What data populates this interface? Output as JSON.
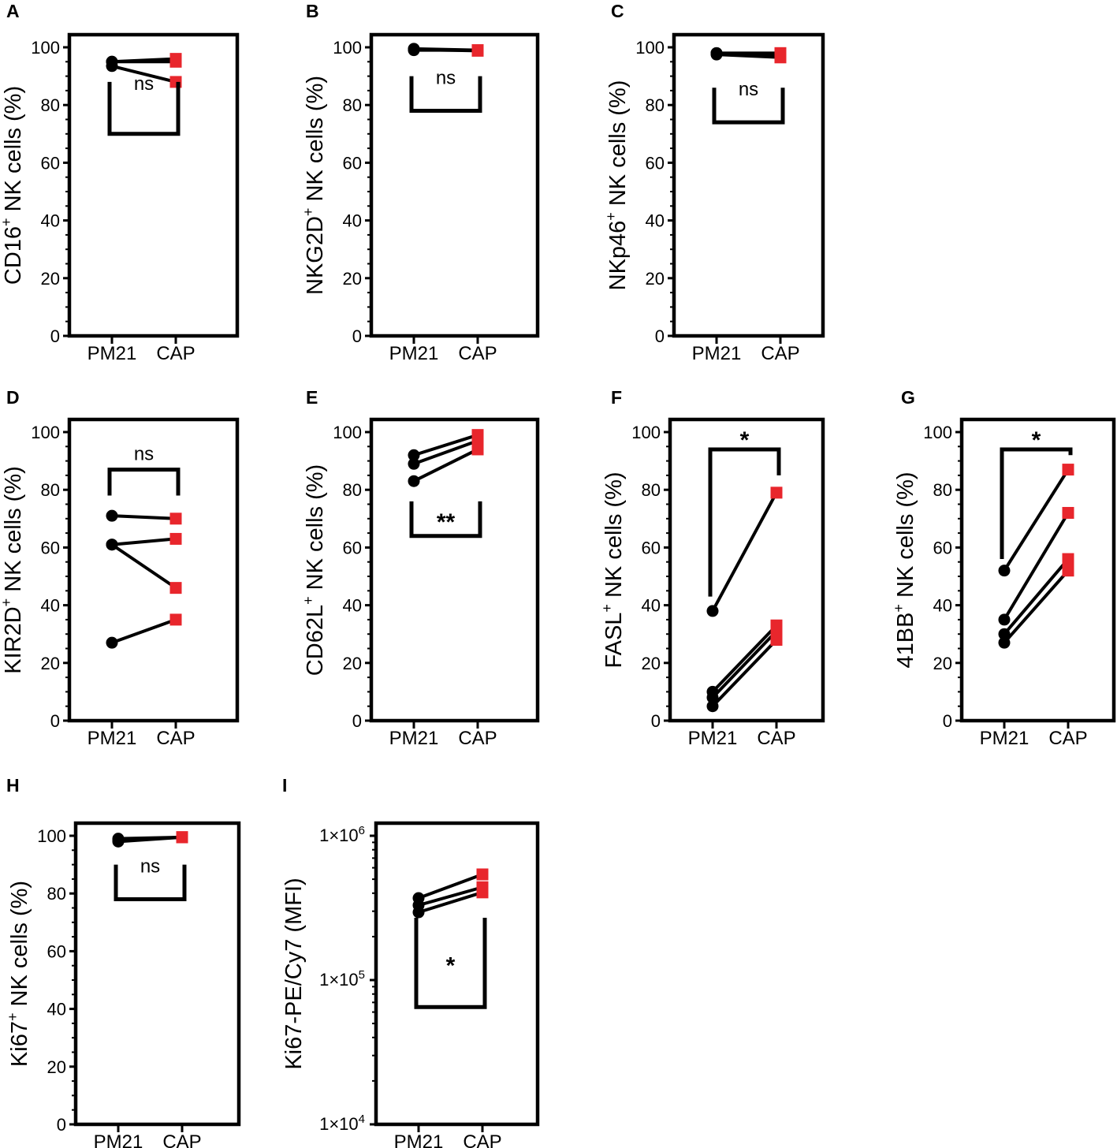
{
  "chart_data": [
    {
      "panel": "A",
      "type": "line",
      "ylabel": "CD16",
      "ylabel_sup": "+",
      "ylabel_rest": " NK cells (%)",
      "categories": [
        "PM21",
        "CAP"
      ],
      "ylim": [
        0,
        100
      ],
      "yticks": [
        "0",
        "20",
        "40",
        "60",
        "80",
        "100"
      ],
      "series": [
        {
          "values": [
            95,
            96
          ]
        },
        {
          "values": [
            95,
            95
          ]
        },
        {
          "values": [
            93.5,
            88
          ]
        }
      ],
      "colors": {
        "PM21": "#000000",
        "CAP": "#e8262c"
      },
      "significance": {
        "label": "ns",
        "style": "cup",
        "top": 88,
        "bottom": 70
      }
    },
    {
      "panel": "B",
      "type": "line",
      "ylabel": "NKG2D",
      "ylabel_sup": "+",
      "ylabel_rest": " NK cells (%)",
      "categories": [
        "PM21",
        "CAP"
      ],
      "ylim": [
        0,
        100
      ],
      "yticks": [
        "0",
        "20",
        "40",
        "60",
        "80",
        "100"
      ],
      "series": [
        {
          "values": [
            99.5,
            99
          ]
        },
        {
          "values": [
            99,
            99
          ]
        },
        {
          "values": [
            99.2,
            98.8
          ]
        }
      ],
      "colors": {
        "PM21": "#000000",
        "CAP": "#e8262c"
      },
      "significance": {
        "label": "ns",
        "style": "cup",
        "top": 90,
        "bottom": 78
      }
    },
    {
      "panel": "C",
      "type": "line",
      "ylabel": "NKp46",
      "ylabel_sup": "+",
      "ylabel_rest": " NK cells (%)",
      "categories": [
        "PM21",
        "CAP"
      ],
      "ylim": [
        0,
        100
      ],
      "yticks": [
        "0",
        "20",
        "40",
        "60",
        "80",
        "100"
      ],
      "series": [
        {
          "values": [
            98,
            98
          ]
        },
        {
          "values": [
            98,
            97
          ]
        },
        {
          "values": [
            97.5,
            96.5
          ]
        }
      ],
      "colors": {
        "PM21": "#000000",
        "CAP": "#e8262c"
      },
      "significance": {
        "label": "ns",
        "style": "cup",
        "top": 86,
        "bottom": 74
      }
    },
    {
      "panel": "D",
      "type": "line",
      "ylabel": "KIR2D",
      "ylabel_sup": "+",
      "ylabel_rest": " NK cells (%)",
      "categories": [
        "PM21",
        "CAP"
      ],
      "ylim": [
        0,
        100
      ],
      "yticks": [
        "0",
        "20",
        "40",
        "60",
        "80",
        "100"
      ],
      "series": [
        {
          "values": [
            71,
            70
          ]
        },
        {
          "values": [
            61,
            63
          ]
        },
        {
          "values": [
            61,
            46
          ]
        },
        {
          "values": [
            27,
            35
          ]
        }
      ],
      "colors": {
        "PM21": "#000000",
        "CAP": "#e8262c"
      },
      "significance": {
        "label": "ns",
        "style": "hat",
        "top": 87,
        "bottom": 78
      }
    },
    {
      "panel": "E",
      "type": "line",
      "ylabel": "CD62L",
      "ylabel_sup": "+",
      "ylabel_rest": " NK cells (%)",
      "categories": [
        "PM21",
        "CAP"
      ],
      "ylim": [
        0,
        100
      ],
      "yticks": [
        "0",
        "20",
        "40",
        "60",
        "80",
        "100"
      ],
      "series": [
        {
          "values": [
            92,
            99
          ]
        },
        {
          "values": [
            89,
            97
          ]
        },
        {
          "values": [
            83,
            94
          ]
        }
      ],
      "colors": {
        "PM21": "#000000",
        "CAP": "#e8262c"
      },
      "significance": {
        "label": "**",
        "style": "cup",
        "top": 76,
        "bottom": 64
      }
    },
    {
      "panel": "F",
      "type": "line",
      "ylabel": "FASL",
      "ylabel_sup": "+",
      "ylabel_rest": " NK cells (%)",
      "categories": [
        "PM21",
        "CAP"
      ],
      "ylim": [
        0,
        100
      ],
      "yticks": [
        "0",
        "20",
        "40",
        "60",
        "80",
        "100"
      ],
      "series": [
        {
          "values": [
            38,
            79
          ]
        },
        {
          "values": [
            10,
            33
          ]
        },
        {
          "values": [
            8,
            31
          ]
        },
        {
          "values": [
            5,
            28
          ]
        }
      ],
      "colors": {
        "PM21": "#000000",
        "CAP": "#e8262c"
      },
      "significance": {
        "label": "*",
        "style": "hat",
        "top": 94,
        "bottom_left": 43,
        "bottom_right": 85
      }
    },
    {
      "panel": "G",
      "type": "line",
      "ylabel": "41BB",
      "ylabel_sup": "+",
      "ylabel_rest": " NK cells (%)",
      "categories": [
        "PM21",
        "CAP"
      ],
      "ylim": [
        0,
        100
      ],
      "yticks": [
        "0",
        "20",
        "40",
        "60",
        "80",
        "100"
      ],
      "series": [
        {
          "values": [
            52,
            87
          ]
        },
        {
          "values": [
            35,
            72
          ]
        },
        {
          "values": [
            30,
            56
          ]
        },
        {
          "values": [
            27,
            52
          ]
        }
      ],
      "colors": {
        "PM21": "#000000",
        "CAP": "#e8262c"
      },
      "significance": {
        "label": "*",
        "style": "hat",
        "top": 94,
        "bottom_left": 56,
        "bottom_right": 92
      }
    },
    {
      "panel": "H",
      "type": "line",
      "ylabel": "Ki67",
      "ylabel_sup": "+",
      "ylabel_rest": " NK cells (%)",
      "categories": [
        "PM21",
        "CAP"
      ],
      "ylim": [
        0,
        100
      ],
      "yticks": [
        "0",
        "20",
        "40",
        "60",
        "80",
        "100"
      ],
      "series": [
        {
          "values": [
            99,
            99.5
          ]
        },
        {
          "values": [
            98.5,
            99.5
          ]
        },
        {
          "values": [
            98,
            99.5
          ]
        }
      ],
      "colors": {
        "PM21": "#000000",
        "CAP": "#e8262c"
      },
      "significance": {
        "label": "ns",
        "style": "cup",
        "top": 90,
        "bottom": 78
      }
    },
    {
      "panel": "I",
      "type": "line",
      "yscale": "log",
      "ylabel": "Ki67-PE/Cy7 (MFI)",
      "ylabel_sup": "",
      "ylabel_rest": "",
      "categories": [
        "PM21",
        "CAP"
      ],
      "ylim": [
        10000,
        1000000
      ],
      "yticks": [
        {
          "mantissa": "1×10",
          "exp": "4",
          "value": 10000
        },
        {
          "mantissa": "1×10",
          "exp": "5",
          "value": 100000
        },
        {
          "mantissa": "1×10",
          "exp": "6",
          "value": 1000000
        }
      ],
      "series": [
        {
          "values": [
            370000,
            540000
          ]
        },
        {
          "values": [
            330000,
            440000
          ]
        },
        {
          "values": [
            295000,
            405000
          ]
        }
      ],
      "colors": {
        "PM21": "#000000",
        "CAP": "#e8262c"
      },
      "significance": {
        "label": "*",
        "style": "cup",
        "top": 270000,
        "bottom": 65000
      }
    }
  ]
}
